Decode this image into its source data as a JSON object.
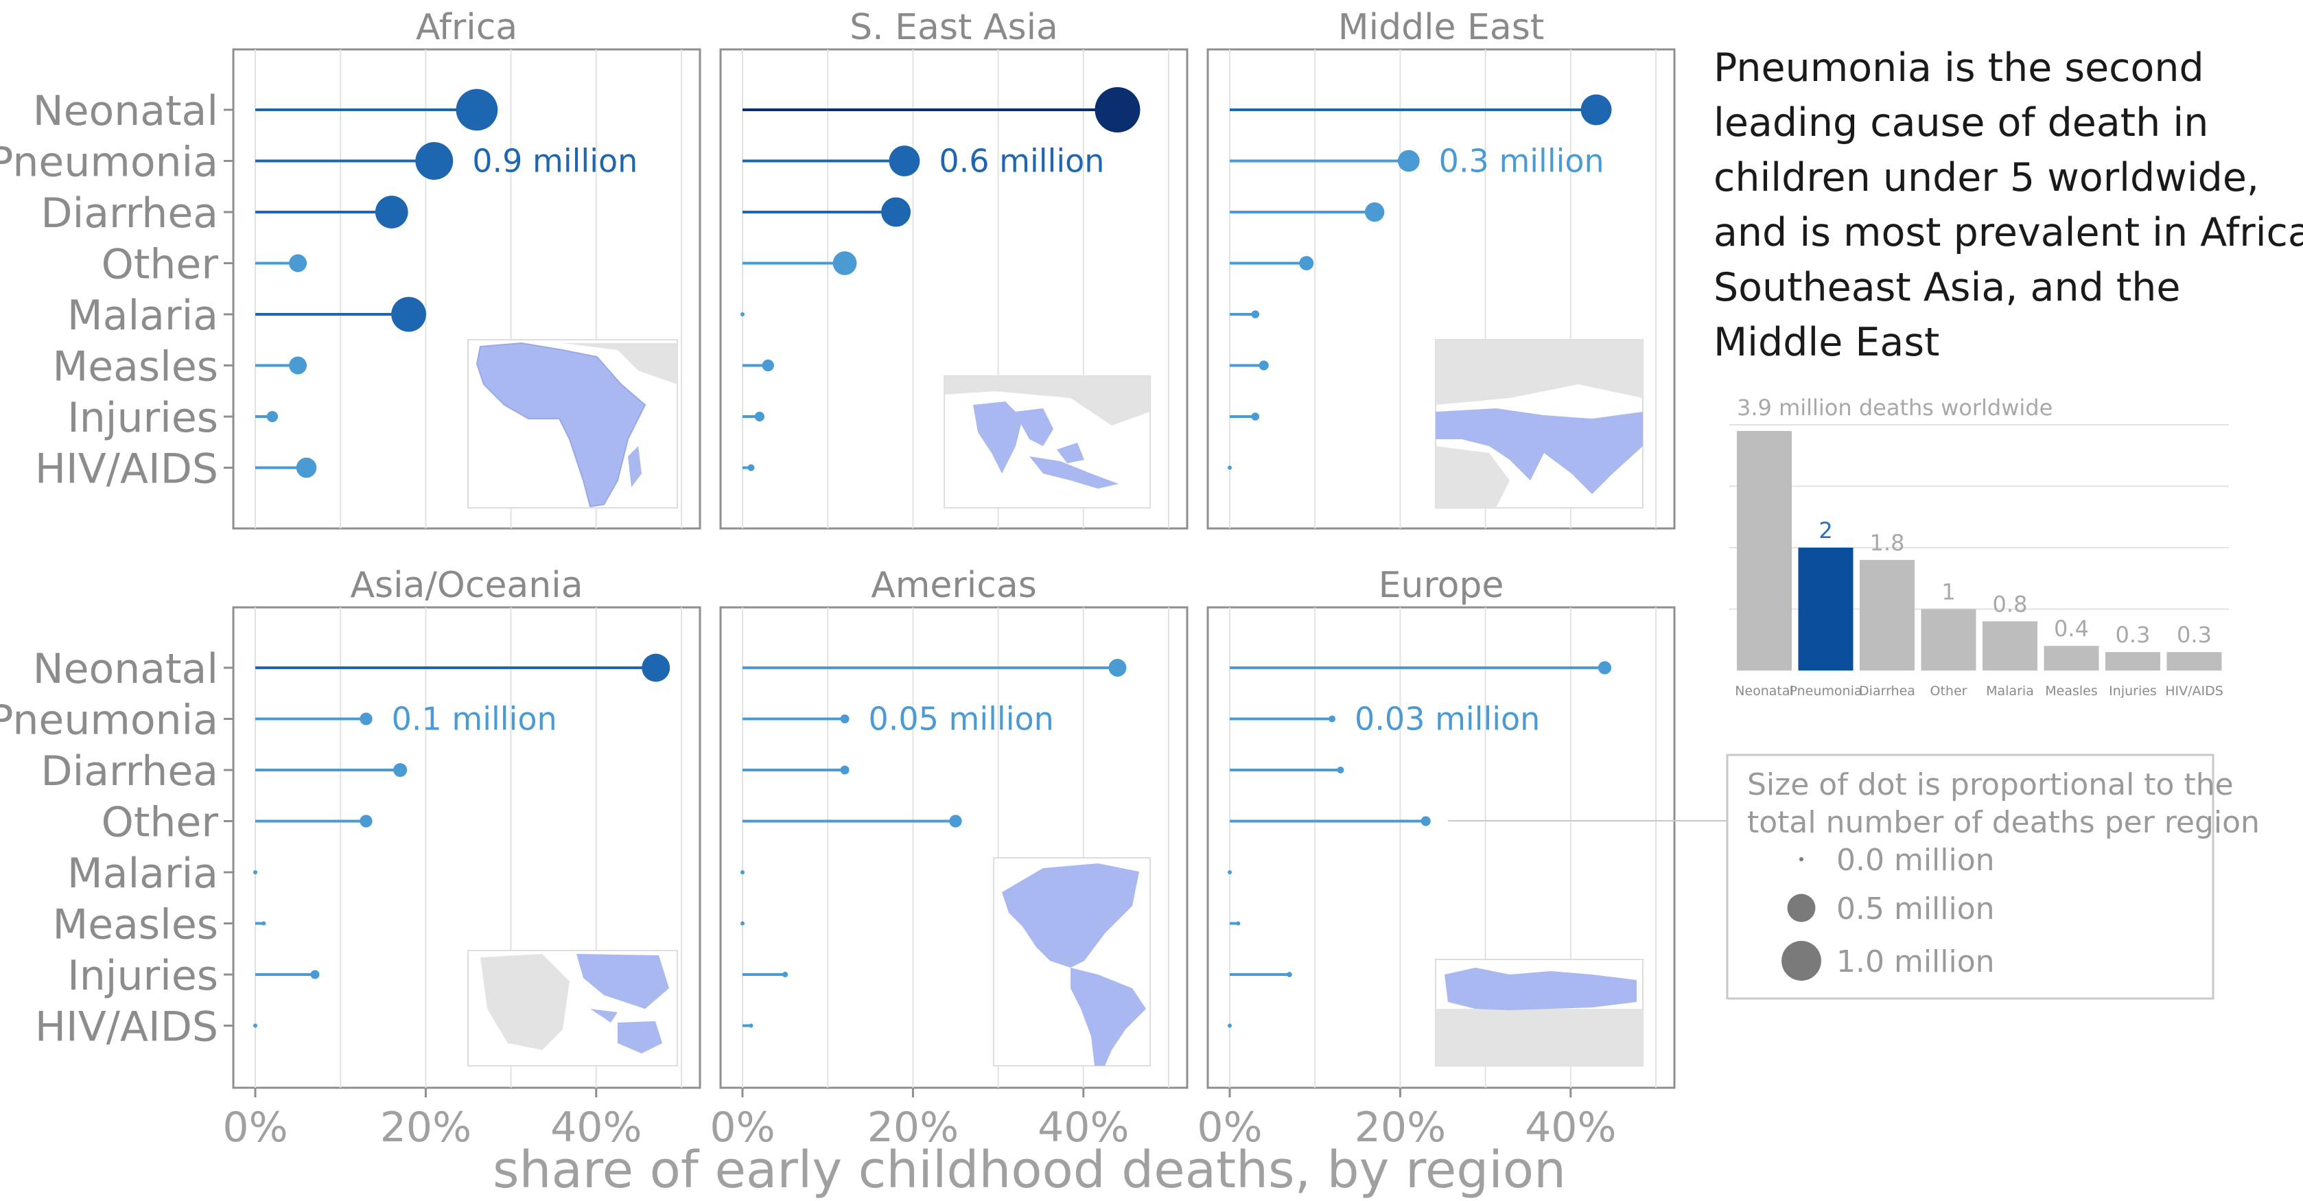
{
  "headline": "Pneumonia is the second leading cause of death in children under 5 worldwide, and is most prevalent in Africa, Southeast Asia, and the Middle East",
  "headline_lines": [
    "Pneumonia is the second",
    "leading cause of death in",
    "children under 5 worldwide,",
    "and is most prevalent in Africa,",
    "Southeast Asia, and the",
    "Middle East"
  ],
  "colors": {
    "dot_light": "#4a9bd3",
    "dot_mid": "#1f66b0",
    "dot_dark": "#0b2f6e",
    "pneumonia_bar": "#0b4f9c",
    "bar_gray": "#bdbdbd",
    "map_fill": "#a9b8f0",
    "map_land": "#e6e6e6"
  },
  "chart_data": [
    {
      "type": "lollipop",
      "xlabel": "share of early childhood deaths, by region",
      "xlim": [
        0,
        0.5
      ],
      "x_ticks": [
        "0%",
        "20%",
        "40%"
      ],
      "causes": [
        "Neonatal",
        "Pneumonia",
        "Diarrhea",
        "Other",
        "Malaria",
        "Measles",
        "Injuries",
        "HIV/AIDS"
      ],
      "panels": [
        {
          "region": "Africa",
          "pneumonia_label": "0.9 million",
          "shares": [
            0.26,
            0.21,
            0.16,
            0.05,
            0.18,
            0.05,
            0.02,
            0.06
          ],
          "deaths_millions": [
            1.1,
            0.9,
            0.68,
            0.2,
            0.77,
            0.2,
            0.08,
            0.26
          ]
        },
        {
          "region": "S. East Asia",
          "pneumonia_label": "0.6 million",
          "shares": [
            0.44,
            0.19,
            0.18,
            0.12,
            0.0,
            0.03,
            0.02,
            0.01
          ],
          "deaths_millions": [
            1.3,
            0.6,
            0.55,
            0.36,
            0.0,
            0.09,
            0.06,
            0.03
          ]
        },
        {
          "region": "Middle East",
          "pneumonia_label": "0.3 million",
          "shares": [
            0.43,
            0.21,
            0.17,
            0.09,
            0.03,
            0.04,
            0.03,
            0.0
          ],
          "deaths_millions": [
            0.6,
            0.3,
            0.24,
            0.13,
            0.04,
            0.06,
            0.04,
            0.0
          ]
        },
        {
          "region": "Asia/Oceania",
          "pneumonia_label": "0.1 million",
          "shares": [
            0.47,
            0.13,
            0.17,
            0.13,
            0.0,
            0.01,
            0.07,
            0.0
          ],
          "deaths_millions": [
            0.5,
            0.1,
            0.12,
            0.1,
            0.0,
            0.01,
            0.05,
            0.0
          ]
        },
        {
          "region": "Americas",
          "pneumonia_label": "0.05 million",
          "shares": [
            0.44,
            0.12,
            0.12,
            0.25,
            0.0,
            0.0,
            0.05,
            0.01
          ],
          "deaths_millions": [
            0.2,
            0.05,
            0.05,
            0.1,
            0.0,
            0.0,
            0.02,
            0.004
          ]
        },
        {
          "region": "Europe",
          "pneumonia_label": "0.03 million",
          "shares": [
            0.44,
            0.12,
            0.13,
            0.23,
            0.0,
            0.01,
            0.07,
            0.0
          ],
          "deaths_millions": [
            0.11,
            0.03,
            0.03,
            0.06,
            0.0,
            0.003,
            0.018,
            0.0
          ]
        }
      ]
    },
    {
      "type": "bar",
      "title": "3.9 million deaths worldwide",
      "categories": [
        "Neonatal",
        "Pneumonia",
        "Diarrhea",
        "Other",
        "Malaria",
        "Measles",
        "Injuries",
        "HIV/AIDS"
      ],
      "values": [
        3.9,
        2,
        1.8,
        1,
        0.8,
        0.4,
        0.3,
        0.3
      ],
      "value_labels": [
        "",
        "2",
        "1.8",
        "1",
        "0.8",
        "0.4",
        "0.3",
        "0.3"
      ],
      "highlight": "Pneumonia",
      "ylim": [
        0,
        4
      ]
    }
  ],
  "legend": {
    "title_lines": [
      "Size of dot is proportional to the",
      "total number of deaths per region"
    ],
    "items": [
      {
        "label": "0.0 million",
        "value": 0.0
      },
      {
        "label": "0.5 million",
        "value": 0.5
      },
      {
        "label": "1.0 million",
        "value": 1.0
      }
    ]
  }
}
